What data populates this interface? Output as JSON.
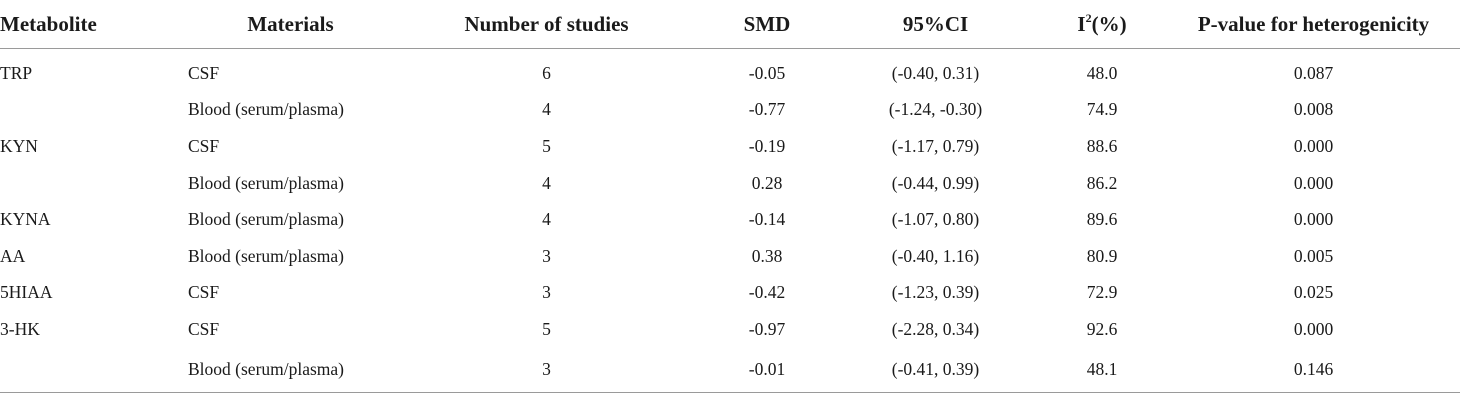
{
  "table": {
    "headers": {
      "metabolite": "Metabolite",
      "materials": "Materials",
      "num_studies": "Number of studies",
      "smd": "SMD",
      "ci": "95%CI",
      "i2_base": "I",
      "i2_sup": "2",
      "i2_unit": "(%)",
      "p_value": "P-value for heterogenicity"
    },
    "rows": [
      {
        "metabolite": "TRP",
        "material": "CSF",
        "n": "6",
        "smd": "-0.05",
        "ci": "(-0.40, 0.31)",
        "i2": "48.0",
        "p": "0.087"
      },
      {
        "metabolite": "",
        "material": "Blood (serum/plasma)",
        "n": "4",
        "smd": "-0.77",
        "ci": "(-1.24, -0.30)",
        "i2": "74.9",
        "p": "0.008"
      },
      {
        "metabolite": "KYN",
        "material": "CSF",
        "n": "5",
        "smd": "-0.19",
        "ci": "(-1.17, 0.79)",
        "i2": "88.6",
        "p": "0.000"
      },
      {
        "metabolite": "",
        "material": "Blood (serum/plasma)",
        "n": "4",
        "smd": "0.28",
        "ci": "(-0.44, 0.99)",
        "i2": "86.2",
        "p": "0.000"
      },
      {
        "metabolite": "KYNA",
        "material": "Blood (serum/plasma)",
        "n": "4",
        "smd": "-0.14",
        "ci": "(-1.07, 0.80)",
        "i2": "89.6",
        "p": "0.000"
      },
      {
        "metabolite": "AA",
        "material": "Blood (serum/plasma)",
        "n": "3",
        "smd": "0.38",
        "ci": "(-0.40, 1.16)",
        "i2": "80.9",
        "p": "0.005"
      },
      {
        "metabolite": "5HIAA",
        "material": "CSF",
        "n": "3",
        "smd": "-0.42",
        "ci": "(-1.23, 0.39)",
        "i2": "72.9",
        "p": "0.025"
      },
      {
        "metabolite": "3-HK",
        "material": "CSF",
        "n": "5",
        "smd": "-0.97",
        "ci": "(-2.28, 0.34)",
        "i2": "92.6",
        "p": "0.000"
      },
      {
        "metabolite": "",
        "material": "Blood (serum/plasma)",
        "n": "3",
        "smd": "-0.01",
        "ci": "(-0.41, 0.39)",
        "i2": "48.1",
        "p": "0.146"
      }
    ]
  }
}
